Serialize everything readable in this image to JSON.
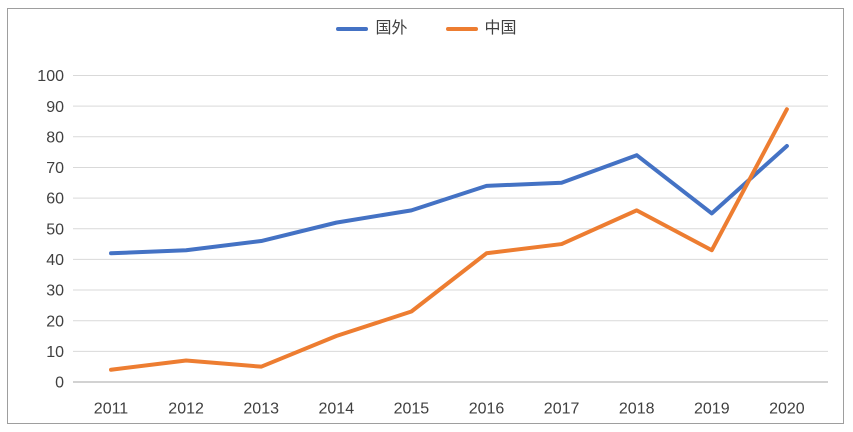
{
  "chart_data": {
    "type": "line",
    "x": [
      "2011",
      "2012",
      "2013",
      "2014",
      "2015",
      "2016",
      "2017",
      "2018",
      "2019",
      "2020"
    ],
    "series": [
      {
        "name": "国外",
        "color": "#4472C4",
        "values": [
          42,
          43,
          46,
          52,
          56,
          64,
          65,
          74,
          55,
          77
        ]
      },
      {
        "name": "中国",
        "color": "#ED7D31",
        "values": [
          4,
          7,
          5,
          15,
          23,
          42,
          45,
          56,
          43,
          89
        ]
      }
    ],
    "title": "",
    "xlabel": "",
    "ylabel": "",
    "ylim": [
      0,
      100
    ],
    "ytick_step": 10,
    "yticks": [
      "0",
      "10",
      "20",
      "30",
      "40",
      "50",
      "60",
      "70",
      "80",
      "90",
      "100"
    ],
    "grid": true,
    "legend_position": "top-center"
  },
  "colors": {
    "gridline": "#D9D9D9",
    "axis_line": "#A6A6A6",
    "tick_text": "#404040",
    "frame_border": "#9E9E9E",
    "background": "#FFFFFF"
  }
}
